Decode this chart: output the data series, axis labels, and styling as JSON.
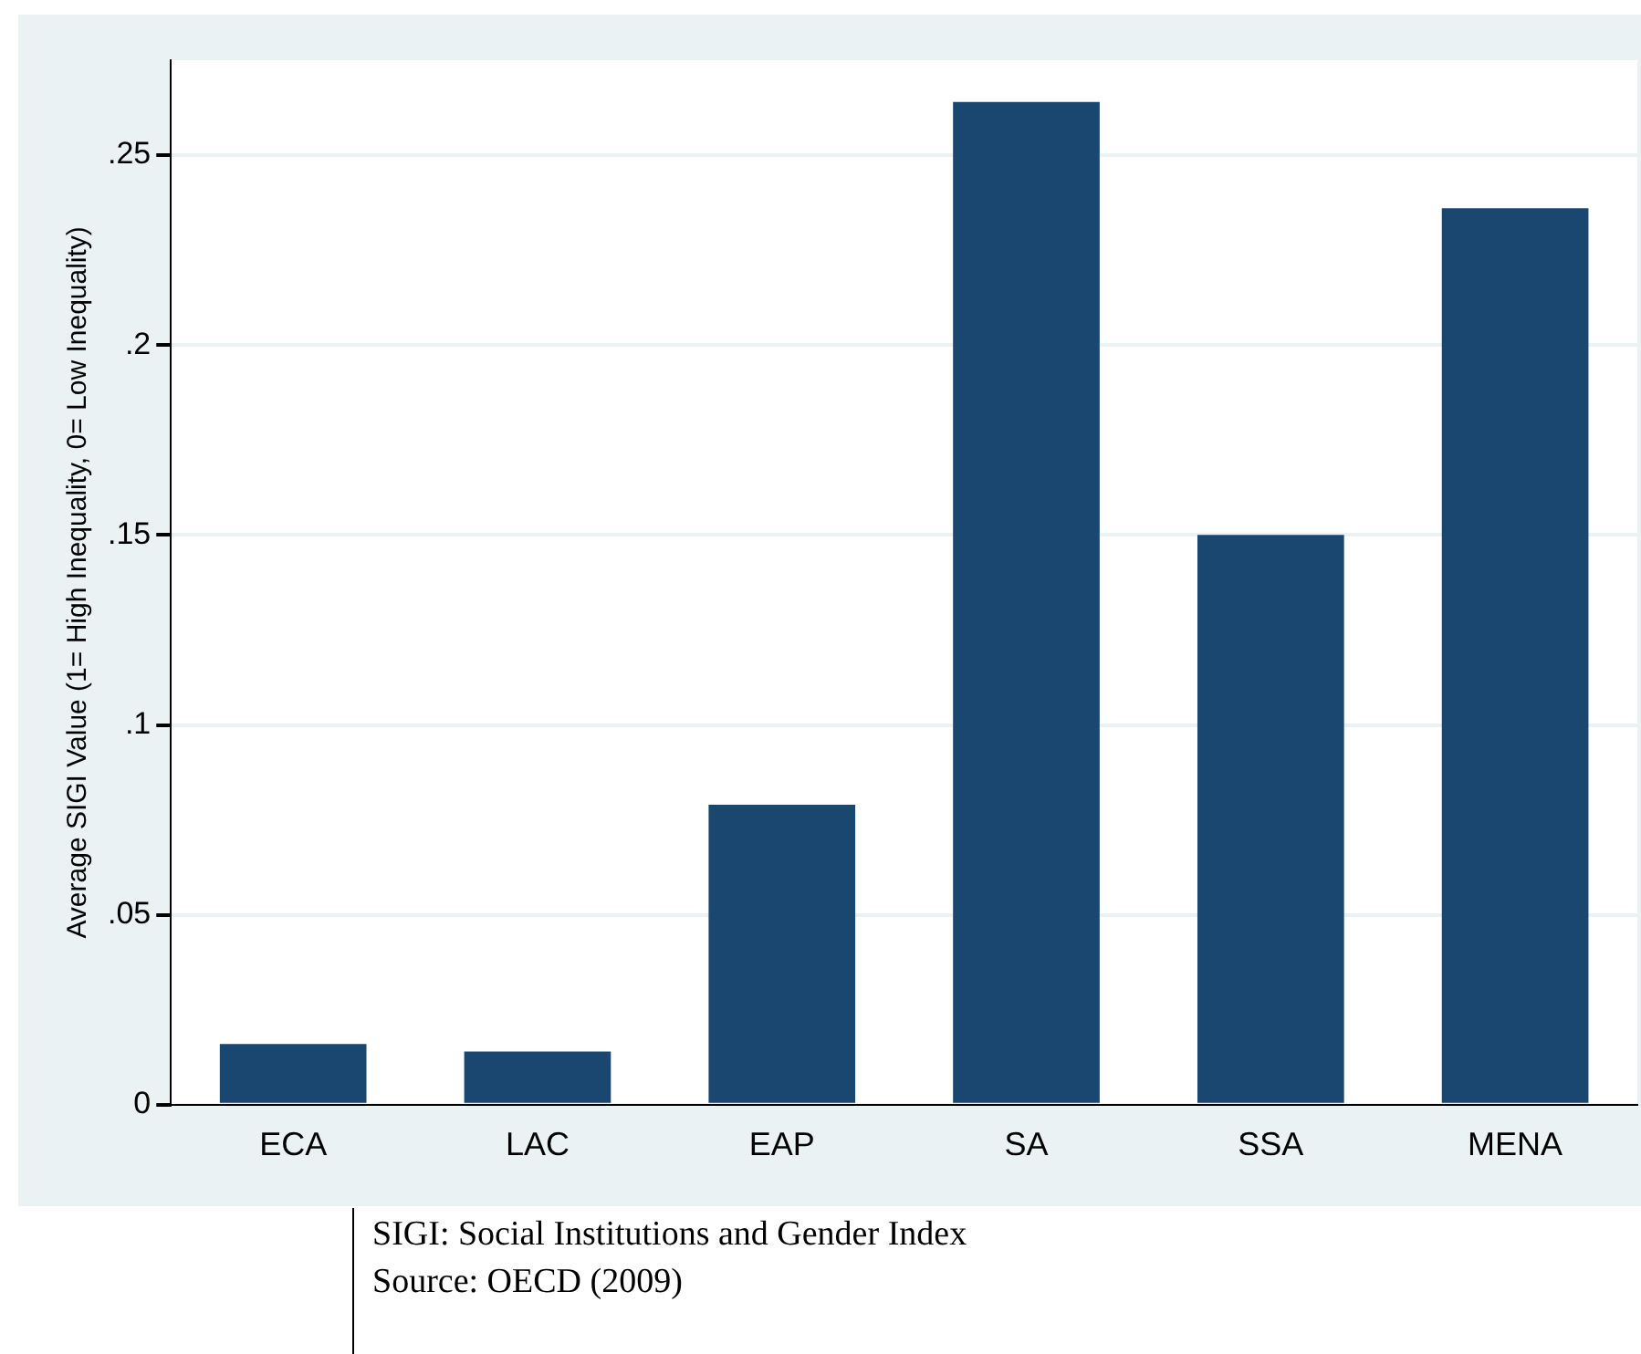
{
  "chart_data": {
    "type": "bar",
    "ylabel": "Average SIGI Value (1= High Inequality, 0= Low Inequality)",
    "categories": [
      "ECA",
      "LAC",
      "EAP",
      "SA",
      "SSA",
      "MENA"
    ],
    "values": [
      0.016,
      0.014,
      0.079,
      0.264,
      0.15,
      0.236
    ],
    "color": "#1a476f",
    "ylim": [
      0,
      0.275
    ],
    "yticks": [
      0,
      {
        "value": 0.05,
        "label": ".05"
      },
      {
        "value": 0.1,
        "label": ".1"
      },
      {
        "value": 0.15,
        "label": ".15"
      },
      {
        "value": 0.2,
        "label": ".2"
      },
      {
        "value": 0.25,
        "label": ".25"
      }
    ],
    "grid": "y",
    "annotations": [
      "SIGI: Social Institutions and Gender Index",
      "Source: OECD (2009)"
    ]
  }
}
